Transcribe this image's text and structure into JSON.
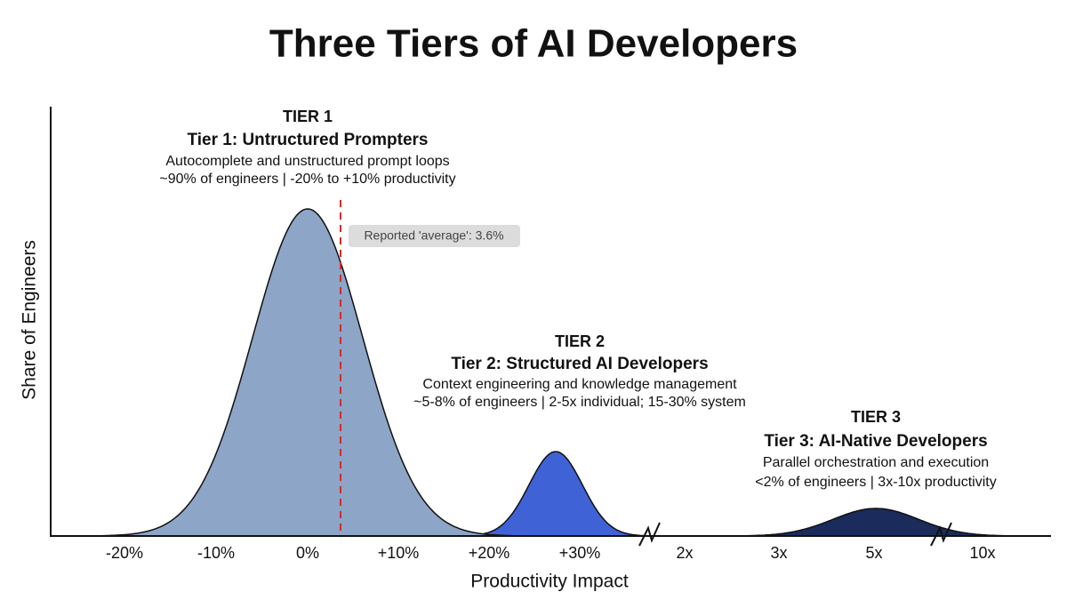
{
  "title": "Three Tiers of AI Developers",
  "y_label": "Share of Engineers",
  "x_label": "Productivity Impact",
  "x_ticks": [
    "-20%",
    "-10%",
    "0%",
    "+10%",
    "+20%",
    "+30%",
    "2x",
    "3x",
    "5x",
    "10x"
  ],
  "average_annotation": "Reported 'average': 3.6%",
  "tiers": [
    {
      "tag": "TIER 1",
      "name": "Tier 1: Untructured Prompters",
      "description": "Autocomplete and unstructured prompt loops",
      "stats": "~90% of engineers | -20% to +10% productivity",
      "color": "#8da5c6"
    },
    {
      "tag": "TIER 2",
      "name": "Tier 2: Structured AI Developers",
      "description": "Context engineering and knowledge management",
      "stats": "~5-8% of engineers | 2-5x individual; 15-30% system",
      "color": "#3f63d6"
    },
    {
      "tag": "TIER 3",
      "name": "Tier 3: AI-Native Developers",
      "description": "Parallel orchestration and execution",
      "stats": "<2% of engineers | 3x-10x productivity",
      "color": "#1a2b5c"
    }
  ]
}
